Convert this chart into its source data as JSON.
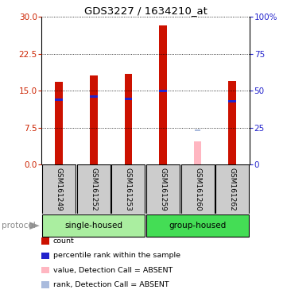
{
  "title": "GDS3227 / 1634210_at",
  "samples": [
    "GSM161249",
    "GSM161252",
    "GSM161253",
    "GSM161259",
    "GSM161260",
    "GSM161262"
  ],
  "count_values": [
    16.8,
    18.1,
    18.4,
    28.2,
    null,
    17.0
  ],
  "rank_values": [
    13.2,
    13.8,
    13.3,
    15.0,
    null,
    12.8
  ],
  "absent_count": [
    null,
    null,
    null,
    null,
    4.8,
    null
  ],
  "absent_rank": [
    null,
    null,
    null,
    null,
    7.0,
    null
  ],
  "ylim_left": [
    0,
    30
  ],
  "yticks_left": [
    0,
    7.5,
    15,
    22.5,
    30
  ],
  "ylim_right": [
    0,
    100
  ],
  "yticks_right": [
    0,
    25,
    50,
    75,
    100
  ],
  "bar_color_red": "#CC1100",
  "bar_color_blue": "#2222CC",
  "bar_color_absent_val": "#FFB6C1",
  "bar_color_absent_rank": "#AABBDD",
  "bar_width": 0.22,
  "left_ytick_color": "#CC2200",
  "right_ytick_color": "#2222CC",
  "group1_color": "#AAEEA0",
  "group2_color": "#44DD55",
  "label_bg": "#CCCCCC",
  "legend_items": [
    {
      "label": "count",
      "color": "#CC1100"
    },
    {
      "label": "percentile rank within the sample",
      "color": "#2222CC"
    },
    {
      "label": "value, Detection Call = ABSENT",
      "color": "#FFB6C1"
    },
    {
      "label": "rank, Detection Call = ABSENT",
      "color": "#AABBDD"
    }
  ]
}
